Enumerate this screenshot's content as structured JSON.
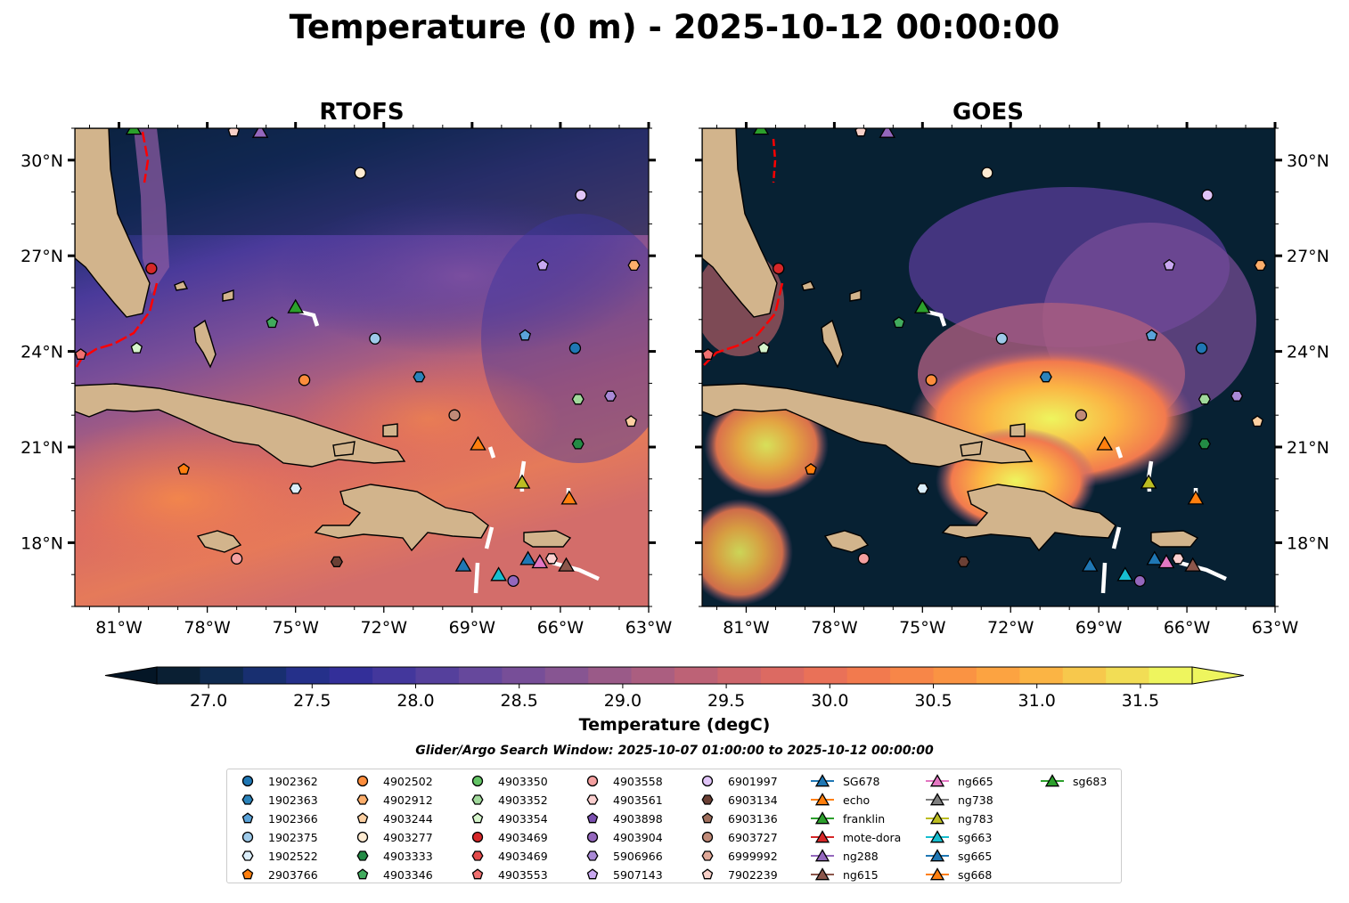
{
  "title": "Temperature (0 m) - 2025-10-12 00:00:00",
  "chart_data": {
    "type": "heatmap",
    "panels": [
      {
        "name": "RTOFS"
      },
      {
        "name": "GOES"
      }
    ],
    "x_ticks": [
      "81°W",
      "78°W",
      "75°W",
      "72°W",
      "69°W",
      "66°W",
      "63°W"
    ],
    "x_tick_values": [
      -81,
      -78,
      -75,
      -72,
      -69,
      -66,
      -63
    ],
    "y_ticks": [
      "30°N",
      "27°N",
      "24°N",
      "21°N",
      "18°N"
    ],
    "y_tick_values": [
      30,
      27,
      24,
      21,
      18
    ],
    "xlim": [
      -82.5,
      -63
    ],
    "ylim": [
      16,
      31
    ],
    "colorbar": {
      "label": "Temperature (degC)",
      "ticks": [
        "27.0",
        "27.5",
        "28.0",
        "28.5",
        "29.0",
        "29.5",
        "30.0",
        "30.5",
        "31.0",
        "31.5"
      ],
      "range": [
        26.75,
        31.75
      ],
      "colors": [
        "#0a1f33",
        "#0f2a4f",
        "#182f70",
        "#25308a",
        "#332f99",
        "#43379c",
        "#55409c",
        "#66489c",
        "#774e98",
        "#875592",
        "#9a5a88",
        "#ab5e80",
        "#bd6276",
        "#cd666c",
        "#dc6a62",
        "#e97158",
        "#f27a4e",
        "#f78648",
        "#fa9343",
        "#fca341",
        "#fbb444",
        "#f7c84c",
        "#f2dd55",
        "#eef55e"
      ]
    },
    "subtitle": "Glider/Argo Search Window: 2025-10-07 01:00:00 to 2025-10-12 00:00:00",
    "legend": [
      {
        "label": "1902362",
        "marker": "circle",
        "color": "#1f77b4"
      },
      {
        "label": "1902363",
        "marker": "hexagon",
        "color": "#2b83ba"
      },
      {
        "label": "1902366",
        "marker": "pentagon",
        "color": "#5ba3d9"
      },
      {
        "label": "1902375",
        "marker": "circle",
        "color": "#9ecae9"
      },
      {
        "label": "1902522",
        "marker": "hexagon",
        "color": "#dbeefa"
      },
      {
        "label": "2903766",
        "marker": "pentagon",
        "color": "#ff7f0e"
      },
      {
        "label": "4902502",
        "marker": "circle",
        "color": "#fd8d3c"
      },
      {
        "label": "4902912",
        "marker": "hexagon",
        "color": "#fdae6b"
      },
      {
        "label": "4903244",
        "marker": "pentagon",
        "color": "#fdd0a2"
      },
      {
        "label": "4903277",
        "marker": "circle",
        "color": "#feebd2"
      },
      {
        "label": "4903333",
        "marker": "hexagon",
        "color": "#238b45"
      },
      {
        "label": "4903346",
        "marker": "pentagon",
        "color": "#41ab5d"
      },
      {
        "label": "4903350",
        "marker": "circle",
        "color": "#63c465"
      },
      {
        "label": "4903352",
        "marker": "hexagon",
        "color": "#a1d99b"
      },
      {
        "label": "4903354",
        "marker": "pentagon",
        "color": "#d6f5cc"
      },
      {
        "label": "4903469",
        "marker": "circle",
        "color": "#d62728"
      },
      {
        "label": "4903469",
        "marker": "hexagon",
        "color": "#e34a4a"
      },
      {
        "label": "4903553",
        "marker": "pentagon",
        "color": "#f07070"
      },
      {
        "label": "4903558",
        "marker": "circle",
        "color": "#f4a0a0"
      },
      {
        "label": "4903561",
        "marker": "hexagon",
        "color": "#fcd0d0"
      },
      {
        "label": "4903898",
        "marker": "pentagon",
        "color": "#7b4fb0"
      },
      {
        "label": "4903904",
        "marker": "circle",
        "color": "#9467bd"
      },
      {
        "label": "5906966",
        "marker": "hexagon",
        "color": "#a989d6"
      },
      {
        "label": "5907143",
        "marker": "pentagon",
        "color": "#c9a8f0"
      },
      {
        "label": "6901997",
        "marker": "circle",
        "color": "#e0c4f7"
      },
      {
        "label": "6903134",
        "marker": "hexagon",
        "color": "#6b4035"
      },
      {
        "label": "6903136",
        "marker": "pentagon",
        "color": "#a0705e"
      },
      {
        "label": "6903727",
        "marker": "circle",
        "color": "#c08a78"
      },
      {
        "label": "6999992",
        "marker": "hexagon",
        "color": "#e0a898"
      },
      {
        "label": "7902239",
        "marker": "pentagon",
        "color": "#f8d0c8"
      },
      {
        "label": "SG678",
        "marker": "triangle",
        "color": "#1f77b4"
      },
      {
        "label": "echo",
        "marker": "triangle",
        "color": "#ff7f0e"
      },
      {
        "label": "franklin",
        "marker": "triangle",
        "color": "#2ca02c"
      },
      {
        "label": "mote-dora",
        "marker": "triangle",
        "color": "#d62728"
      },
      {
        "label": "ng288",
        "marker": "triangle",
        "color": "#9467bd"
      },
      {
        "label": "ng615",
        "marker": "triangle",
        "color": "#8c564b"
      },
      {
        "label": "ng665",
        "marker": "triangle",
        "color": "#e377c2"
      },
      {
        "label": "ng738",
        "marker": "triangle",
        "color": "#7f7f7f"
      },
      {
        "label": "ng783",
        "marker": "triangle",
        "color": "#bcbd22"
      },
      {
        "label": "sg663",
        "marker": "triangle",
        "color": "#17becf"
      },
      {
        "label": "sg665",
        "marker": "triangle",
        "color": "#1f77b4"
      },
      {
        "label": "sg668",
        "marker": "triangle",
        "color": "#ff7f0e"
      },
      {
        "label": "sg683",
        "marker": "triangle",
        "color": "#2ca02c"
      }
    ],
    "observations": [
      {
        "id": "1902362",
        "lon": -65.5,
        "lat": 24.1
      },
      {
        "id": "1902363",
        "lon": -70.8,
        "lat": 23.2
      },
      {
        "id": "1902366",
        "lon": -67.2,
        "lat": 24.5
      },
      {
        "id": "1902375",
        "lon": -72.3,
        "lat": 24.4
      },
      {
        "id": "1902522",
        "lon": -75.0,
        "lat": 19.7
      },
      {
        "id": "2903766",
        "lon": -78.8,
        "lat": 20.3
      },
      {
        "id": "4902502",
        "lon": -74.7,
        "lat": 23.1
      },
      {
        "id": "4902912",
        "lon": -63.5,
        "lat": 26.7
      },
      {
        "id": "4903244",
        "lon": -63.6,
        "lat": 21.8
      },
      {
        "id": "4903277",
        "lon": -72.8,
        "lat": 29.6
      },
      {
        "id": "4903333",
        "lon": -65.4,
        "lat": 21.1
      },
      {
        "id": "4903346",
        "lon": -75.8,
        "lat": 24.9
      },
      {
        "id": "4903352",
        "lon": -65.4,
        "lat": 22.5
      },
      {
        "id": "4903354",
        "lon": -80.4,
        "lat": 24.1
      },
      {
        "id": "4903469",
        "lon": -79.9,
        "lat": 26.6
      },
      {
        "id": "4903553",
        "lon": -82.3,
        "lat": 23.9
      },
      {
        "id": "4903558",
        "lon": -77.0,
        "lat": 17.5
      },
      {
        "id": "4903561",
        "lon": -66.3,
        "lat": 17.5
      },
      {
        "id": "4903904",
        "lon": -67.6,
        "lat": 16.8
      },
      {
        "id": "5906966",
        "lon": -64.3,
        "lat": 22.6
      },
      {
        "id": "5907143",
        "lon": -66.6,
        "lat": 26.7
      },
      {
        "id": "6901997",
        "lon": -65.3,
        "lat": 28.9
      },
      {
        "id": "6903134",
        "lon": -73.6,
        "lat": 17.4
      },
      {
        "id": "6903727",
        "lon": -69.6,
        "lat": 22.0
      },
      {
        "id": "7902239",
        "lon": -77.1,
        "lat": 30.9
      },
      {
        "id": "ng288",
        "lon": -76.2,
        "lat": 30.9
      },
      {
        "id": "sg683",
        "lon": -80.5,
        "lat": 31.0
      },
      {
        "id": "franklin",
        "lon": -75.0,
        "lat": 25.4
      },
      {
        "id": "echo",
        "lon": -68.8,
        "lat": 21.1
      },
      {
        "id": "ng783",
        "lon": -67.3,
        "lat": 19.9
      },
      {
        "id": "sg668",
        "lon": -65.7,
        "lat": 19.4
      },
      {
        "id": "SG678",
        "lon": -69.3,
        "lat": 17.3
      },
      {
        "id": "sg663",
        "lon": -68.1,
        "lat": 17.0
      },
      {
        "id": "sg665",
        "lon": -67.1,
        "lat": 17.5
      },
      {
        "id": "ng665",
        "lon": -66.7,
        "lat": 17.4
      },
      {
        "id": "ng615",
        "lon": -65.8,
        "lat": 17.3
      }
    ]
  }
}
